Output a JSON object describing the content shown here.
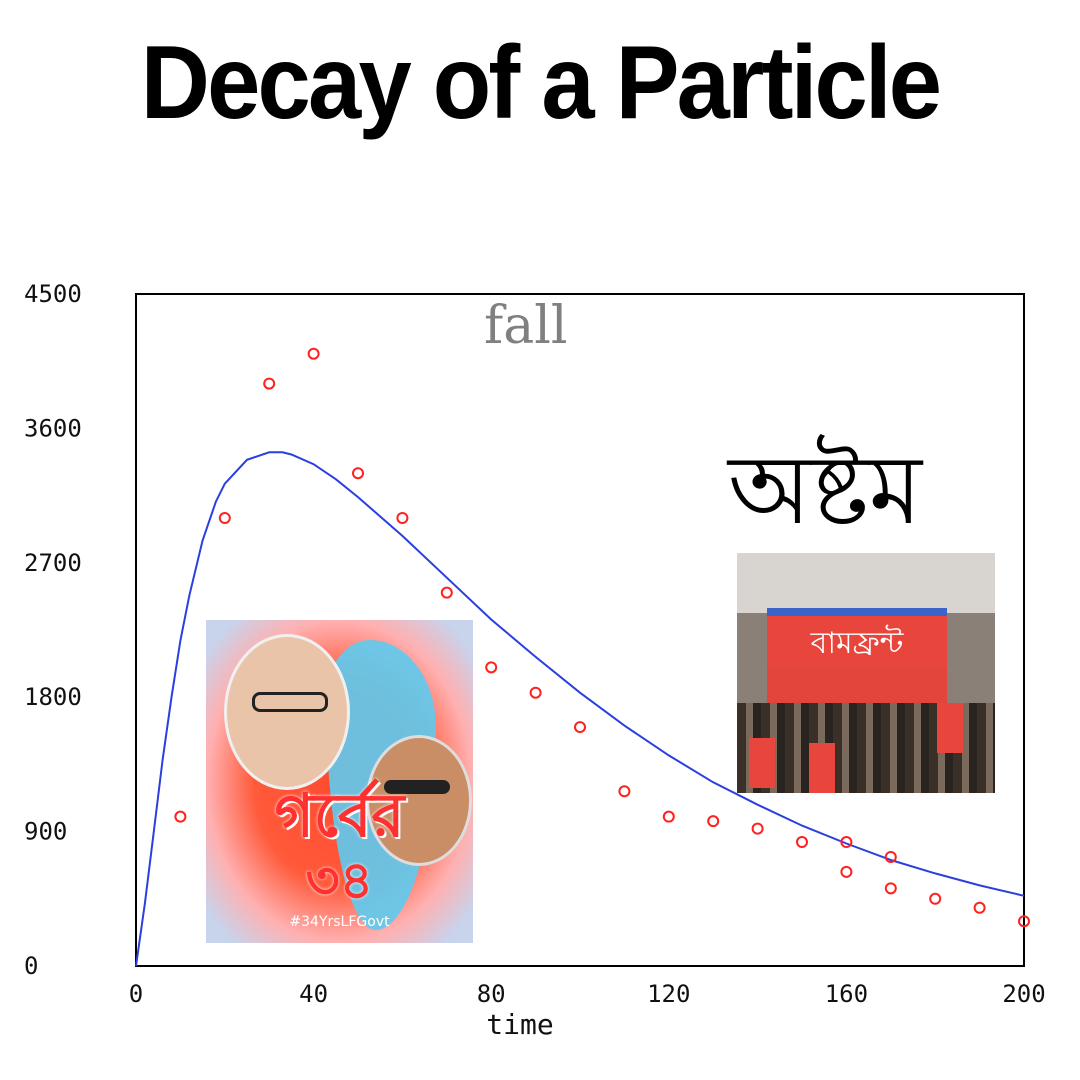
{
  "meme": {
    "title": "Decay of a Particle",
    "annotation_fall": "fall",
    "annotation_bengali": "অষ্টম",
    "photo_left": {
      "caption_bengali": "গর্বের",
      "caption_number": "৩৪",
      "hashtag": "#34YrsLFGovt"
    },
    "photo_right": {
      "banner_text": "বামফ্রন্ট"
    }
  },
  "chart_data": {
    "type": "scatter",
    "title": "",
    "xlabel": "time",
    "ylabel": "",
    "xlim": [
      0,
      200
    ],
    "ylim": [
      0,
      4500
    ],
    "x_ticks": [
      0,
      40,
      80,
      120,
      160,
      200
    ],
    "y_ticks": [
      0,
      900,
      1800,
      2700,
      3600,
      4500
    ],
    "grid": false,
    "colors": {
      "points": "#ff2020",
      "curve": "#2a3fe0",
      "axes": "#000000"
    },
    "series": [
      {
        "kind": "points",
        "x": [
          10,
          20,
          30,
          40,
          50,
          60,
          70,
          80,
          90,
          100,
          110,
          120,
          130,
          140,
          150,
          160,
          160,
          170,
          170,
          180,
          190,
          200
        ],
        "y": [
          1000,
          3000,
          3900,
          4100,
          3300,
          3000,
          2500,
          2000,
          1830,
          1600,
          1170,
          1000,
          970,
          920,
          830,
          830,
          630,
          730,
          520,
          450,
          390,
          300
        ]
      },
      {
        "kind": "fit-curve",
        "x": [
          0,
          2,
          4,
          6,
          8,
          10,
          12,
          15,
          18,
          20,
          25,
          30,
          33,
          35,
          40,
          45,
          50,
          55,
          60,
          70,
          80,
          90,
          100,
          110,
          120,
          130,
          140,
          150,
          160,
          170,
          180,
          190,
          200
        ],
        "y": [
          0,
          420,
          900,
          1380,
          1800,
          2180,
          2480,
          2850,
          3110,
          3230,
          3390,
          3440,
          3440,
          3425,
          3360,
          3260,
          3140,
          3010,
          2880,
          2600,
          2320,
          2070,
          1830,
          1610,
          1410,
          1230,
          1080,
          940,
          820,
          710,
          620,
          540,
          470
        ]
      }
    ]
  }
}
